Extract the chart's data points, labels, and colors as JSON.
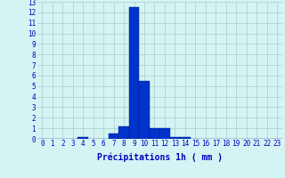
{
  "hours": [
    0,
    1,
    2,
    3,
    4,
    5,
    6,
    7,
    8,
    9,
    10,
    11,
    12,
    13,
    14,
    15,
    16,
    17,
    18,
    19,
    20,
    21,
    22,
    23
  ],
  "values": [
    0,
    0,
    0,
    0,
    0.2,
    0,
    0,
    0.5,
    1.2,
    12.5,
    5.5,
    1.0,
    1.0,
    0.2,
    0.2,
    0,
    0,
    0,
    0,
    0,
    0,
    0,
    0,
    0
  ],
  "bar_color": "#0033cc",
  "bar_edge_color": "#001888",
  "bg_color": "#d4f4f4",
  "grid_color": "#aacccc",
  "xlabel": "Précipitations 1h ( mm )",
  "ylim": [
    0,
    13
  ],
  "yticks": [
    0,
    1,
    2,
    3,
    4,
    5,
    6,
    7,
    8,
    9,
    10,
    11,
    12,
    13
  ],
  "xlabel_color": "#0000bb",
  "tick_color": "#0000bb",
  "tick_fontsize": 5.5,
  "label_fontsize": 7
}
